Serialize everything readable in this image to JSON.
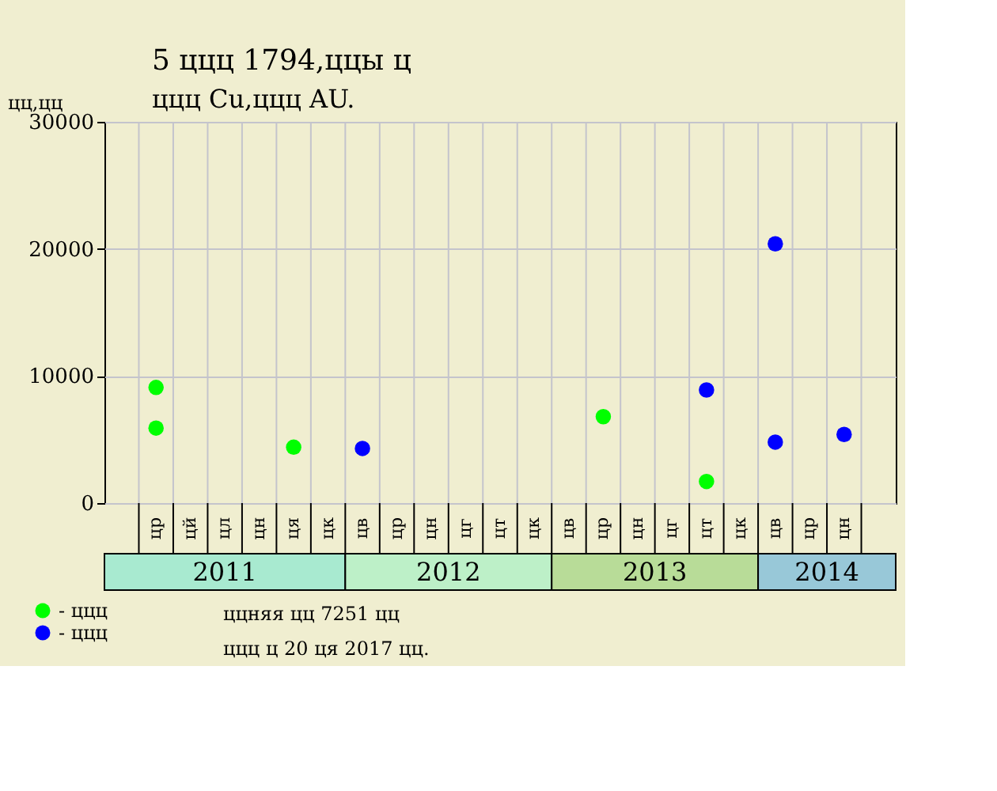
{
  "chart_data": {
    "type": "scatter",
    "title": "5 ццц 1794,ццы ц",
    "subtitle": "ццц Cu,ццц AU.",
    "ylabel": "цц,цц",
    "categories": [
      null,
      "цр",
      "цй",
      "цл",
      "цн",
      "ця",
      "цк",
      "цв",
      "цр",
      "цн",
      "цг",
      "цт",
      "цк",
      "цв",
      "цр",
      "цн",
      "цг",
      "цт",
      "цк",
      "цв",
      "цр",
      "цн",
      null
    ],
    "series": [
      {
        "name": "- ццц",
        "color": "#00ff00",
        "values": [
          null,
          9100,
          null,
          null,
          null,
          4400,
          null,
          null,
          null,
          null,
          null,
          null,
          null,
          null,
          6800,
          null,
          null,
          1700,
          null,
          null,
          null,
          null,
          null
        ]
      },
      {
        "color": "#00ff00",
        "values": [
          null,
          5900,
          null,
          null,
          null,
          null,
          null,
          null,
          null,
          null,
          null,
          null,
          null,
          null,
          null,
          null,
          null,
          null,
          null,
          null,
          null,
          null,
          null
        ]
      },
      {
        "name": "- ццц",
        "color": "#0000ff",
        "values": [
          null,
          null,
          null,
          null,
          null,
          null,
          null,
          4300,
          null,
          null,
          null,
          null,
          null,
          null,
          null,
          null,
          null,
          8900,
          null,
          20400,
          null,
          5400,
          null
        ]
      },
      {
        "color": "#0000ff",
        "values": [
          null,
          null,
          null,
          null,
          null,
          null,
          null,
          null,
          null,
          null,
          null,
          null,
          null,
          null,
          null,
          null,
          null,
          null,
          null,
          4800,
          null,
          null,
          null
        ]
      }
    ],
    "ylim": [
      0,
      30000
    ],
    "yticks": [
      0,
      10000,
      20000,
      30000
    ],
    "grid": true,
    "marker": "circle",
    "legend": "bottom left",
    "annotations": [
      "2011",
      "2012",
      "2013",
      "2014",
      "ццняя цц 7251 цц",
      "ццц ц 20 ця 2017 цц."
    ]
  }
}
